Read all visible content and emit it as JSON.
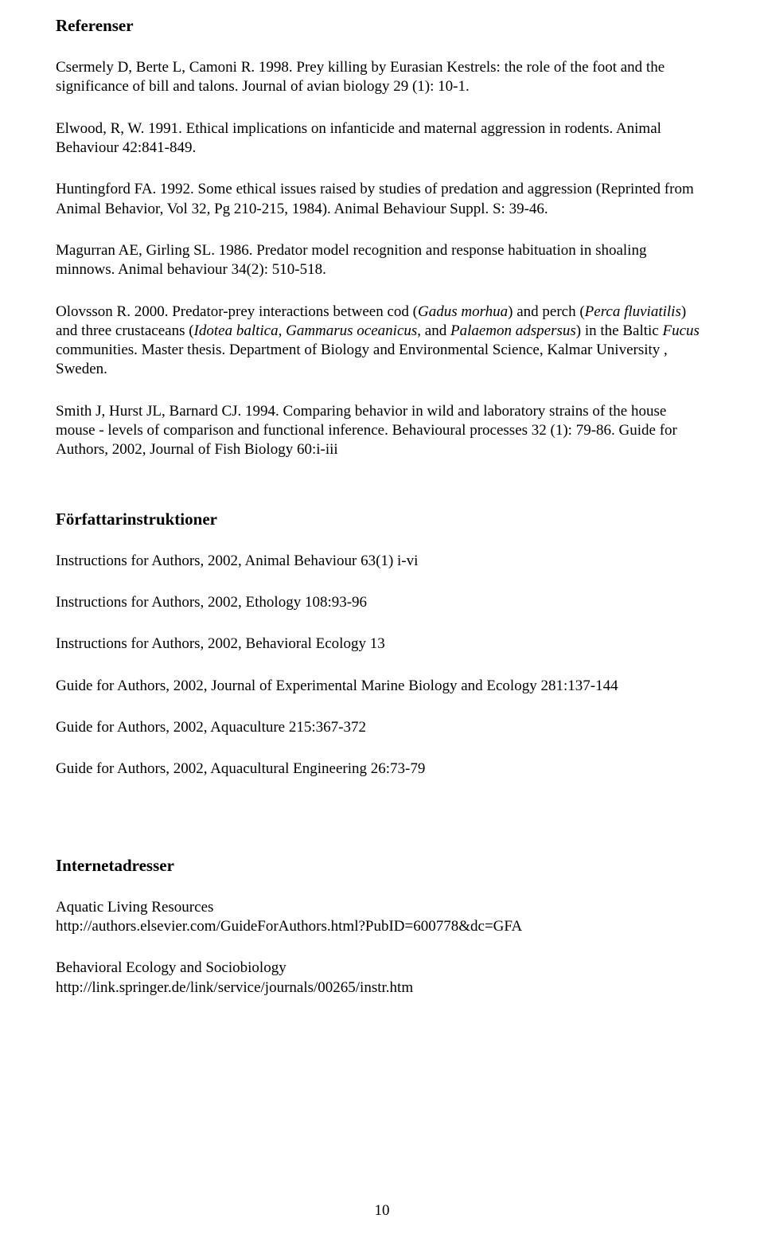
{
  "sections": {
    "references": {
      "heading": "Referenser",
      "items": [
        {
          "text": "Csermely D, Berte L, Camoni R. 1998. Prey killing by Eurasian Kestrels: the role of the foot and the significance of bill and talons. Journal of avian biology 29 (1): 10-1."
        },
        {
          "text": "Elwood, R, W. 1991. Ethical implications on infanticide and maternal aggression in rodents. Animal Behaviour 42:841-849."
        },
        {
          "text": "Huntingford FA. 1992. Some ethical issues raised by studies of predation and aggression (Reprinted from Animal Behavior, Vol 32, Pg 210-215, 1984). Animal Behaviour Suppl. S: 39-46."
        },
        {
          "text": "Magurran AE, Girling SL. 1986. Predator model recognition and response habituation in shoaling minnows. Animal behaviour 34(2): 510-518."
        },
        {
          "pre": "Olovsson R. 2000. Predator-prey interactions between cod (",
          "i1": "Gadus morhua",
          "mid1": ") and perch (",
          "i2": "Perca fluviatilis",
          "mid2": ") and three crustaceans (",
          "i3": "Idotea baltica, Gammarus oceanicus",
          "mid3": ", and ",
          "i4": "Palaemon adspersus",
          "mid4": ") in the Baltic ",
          "i5": "Fucus",
          "post": " communities. Master thesis. Department of Biology and Environmental Science, Kalmar University , Sweden."
        },
        {
          "text": "Smith J, Hurst JL, Barnard CJ. 1994. Comparing behavior in wild and laboratory strains of the house mouse - levels of comparison and functional inference. Behavioural processes 32 (1): 79-86. Guide for Authors, 2002, Journal of Fish Biology 60:i-iii"
        }
      ]
    },
    "author_instructions": {
      "heading": "Författarinstruktioner",
      "items": [
        {
          "text": "Instructions for Authors, 2002, Animal Behaviour 63(1) i-vi"
        },
        {
          "text": "Instructions for Authors, 2002, Ethology 108:93-96"
        },
        {
          "text": "Instructions for Authors, 2002, Behavioral Ecology 13"
        },
        {
          "text": "Guide for Authors, 2002, Journal of Experimental Marine Biology and Ecology 281:137-144"
        },
        {
          "text": "Guide for Authors, 2002, Aquaculture 215:367-372"
        },
        {
          "text": "Guide for Authors, 2002, Aquacultural Engineering 26:73-79"
        }
      ]
    },
    "internet_addresses": {
      "heading": "Internetadresser",
      "items": [
        {
          "title": "Aquatic Living Resources",
          "url": "http://authors.elsevier.com/GuideForAuthors.html?PubID=600778&dc=GFA"
        },
        {
          "title": "Behavioral Ecology and Sociobiology",
          "url": "http://link.springer.de/link/service/journals/00265/instr.htm"
        }
      ]
    }
  },
  "page_number": "10"
}
